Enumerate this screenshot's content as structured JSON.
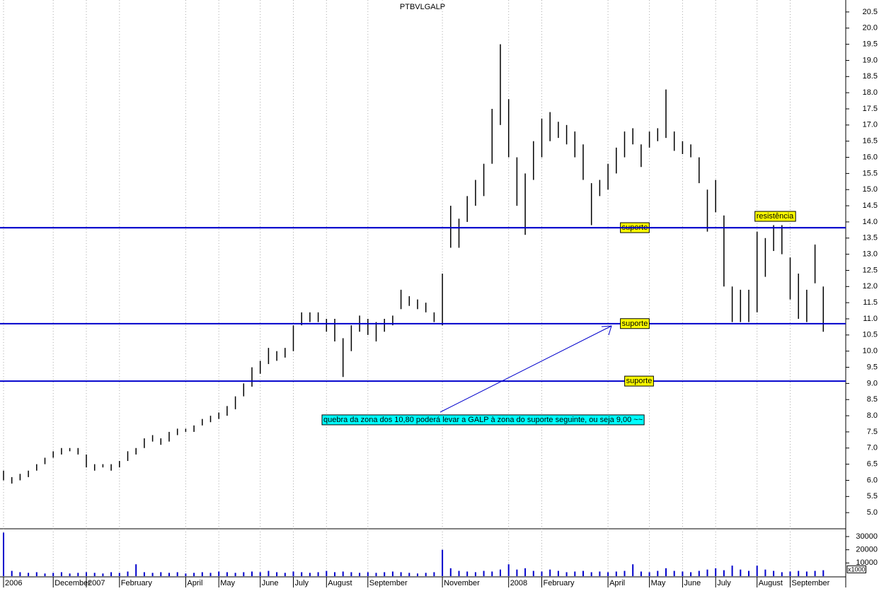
{
  "chart_data": {
    "type": "ohlc",
    "title": "PTBVLGALP",
    "color": "#000000",
    "volume_color": "#0000cc",
    "level_color": "#0000cc",
    "categories": [
      "2006",
      null,
      null,
      null,
      null,
      null,
      "December",
      null,
      null,
      null,
      "2007",
      null,
      null,
      null,
      "February",
      null,
      null,
      null,
      null,
      null,
      null,
      null,
      "April",
      null,
      null,
      null,
      "May",
      null,
      null,
      null,
      null,
      "June",
      null,
      null,
      null,
      "July",
      null,
      null,
      null,
      "August",
      null,
      null,
      null,
      null,
      "September",
      null,
      null,
      null,
      null,
      null,
      null,
      null,
      null,
      "November",
      null,
      null,
      null,
      null,
      null,
      null,
      null,
      "2008",
      null,
      null,
      null,
      "February",
      null,
      null,
      null,
      null,
      null,
      null,
      null,
      "April",
      null,
      null,
      null,
      null,
      "May",
      null,
      null,
      null,
      "June",
      null,
      null,
      null,
      "July",
      null,
      null,
      null,
      null,
      "August",
      null,
      null,
      null,
      "September",
      null,
      null,
      null,
      null
    ],
    "high": [
      6.3,
      6.1,
      6.2,
      6.3,
      6.5,
      6.7,
      6.9,
      7.0,
      7.0,
      7.0,
      6.8,
      6.5,
      6.5,
      6.5,
      6.6,
      6.9,
      7.0,
      7.3,
      7.4,
      7.3,
      7.5,
      7.6,
      7.6,
      7.7,
      7.9,
      8.0,
      8.1,
      8.3,
      8.6,
      9.0,
      9.5,
      9.7,
      10.1,
      10.0,
      10.1,
      10.8,
      11.2,
      11.2,
      11.2,
      11.0,
      11.0,
      10.4,
      10.8,
      11.1,
      11.0,
      10.9,
      11.0,
      11.1,
      11.9,
      11.7,
      11.6,
      11.5,
      11.2,
      12.4,
      14.5,
      14.1,
      14.8,
      15.3,
      15.8,
      17.5,
      19.5,
      17.8,
      16.0,
      15.5,
      16.5,
      17.2,
      17.4,
      17.1,
      17.0,
      16.8,
      16.4,
      15.2,
      15.3,
      15.8,
      16.3,
      16.8,
      16.9,
      16.4,
      16.8,
      16.9,
      18.1,
      16.8,
      16.5,
      16.4,
      16.0,
      15.0,
      15.3,
      14.2,
      12.0,
      11.9,
      11.9,
      13.7,
      13.5,
      13.9,
      13.9,
      12.9,
      12.4,
      11.9,
      13.3,
      12.0
    ],
    "low": [
      6.0,
      5.9,
      6.0,
      6.1,
      6.3,
      6.5,
      6.7,
      6.8,
      6.9,
      6.8,
      6.4,
      6.3,
      6.4,
      6.3,
      6.4,
      6.6,
      6.8,
      7.0,
      7.2,
      7.1,
      7.2,
      7.4,
      7.5,
      7.5,
      7.7,
      7.8,
      7.9,
      8.0,
      8.2,
      8.6,
      8.9,
      9.3,
      9.6,
      9.7,
      9.8,
      10.0,
      10.8,
      10.9,
      10.9,
      10.6,
      10.3,
      9.2,
      10.0,
      10.6,
      10.5,
      10.3,
      10.6,
      10.8,
      11.3,
      11.4,
      11.3,
      11.2,
      10.9,
      10.8,
      13.2,
      13.2,
      14.0,
      14.5,
      14.8,
      15.8,
      17.0,
      16.0,
      14.5,
      13.6,
      15.3,
      16.0,
      16.5,
      16.6,
      16.4,
      16.0,
      15.3,
      13.9,
      14.8,
      15.0,
      15.5,
      16.0,
      16.4,
      15.7,
      16.3,
      16.5,
      16.6,
      16.2,
      16.1,
      16.0,
      15.2,
      13.7,
      14.3,
      12.0,
      10.9,
      10.9,
      10.9,
      11.2,
      12.3,
      13.1,
      13.0,
      11.6,
      11.0,
      10.9,
      12.1,
      10.6
    ],
    "volume": [
      33000,
      4000,
      3000,
      2500,
      3000,
      2000,
      2500,
      3000,
      2000,
      2500,
      3000,
      2500,
      2000,
      3000,
      2500,
      3500,
      9000,
      3000,
      2500,
      3000,
      2500,
      3000,
      2000,
      2500,
      3000,
      2500,
      3500,
      3000,
      2500,
      3000,
      3500,
      3000,
      4000,
      3000,
      2500,
      3500,
      3000,
      2500,
      3000,
      4000,
      3000,
      3500,
      3000,
      2500,
      3000,
      2500,
      3000,
      3500,
      3000,
      2500,
      2000,
      2500,
      3000,
      20000,
      6000,
      4000,
      3500,
      3000,
      4000,
      3500,
      5000,
      9000,
      5000,
      6000,
      4000,
      3500,
      5000,
      4000,
      3000,
      3500,
      4000,
      3000,
      3500,
      3000,
      3500,
      4000,
      9000,
      3500,
      3000,
      4000,
      6000,
      4000,
      3500,
      3000,
      4000,
      5000,
      6000,
      4500,
      8000,
      5000,
      4000,
      8000,
      5000,
      4000,
      3000,
      3500,
      4000,
      3500,
      4000,
      4500
    ],
    "ylim": [
      4.5,
      20.87
    ],
    "yticks": [
      {
        "value": 5,
        "label": "5.0"
      },
      {
        "value": 5.5,
        "label": "5.5"
      },
      {
        "value": 6,
        "label": "6.0"
      },
      {
        "value": 6.5,
        "label": "6.5"
      },
      {
        "value": 7,
        "label": "7.0"
      },
      {
        "value": 7.5,
        "label": "7.5"
      },
      {
        "value": 8,
        "label": "8.0"
      },
      {
        "value": 8.5,
        "label": "8.5"
      },
      {
        "value": 9,
        "label": "9.0"
      },
      {
        "value": 9.5,
        "label": "9.5"
      },
      {
        "value": 10,
        "label": "10.0"
      },
      {
        "value": 10.5,
        "label": "10.5"
      },
      {
        "value": 11,
        "label": "11.0"
      },
      {
        "value": 11.5,
        "label": "11.5"
      },
      {
        "value": 12,
        "label": "12.0"
      },
      {
        "value": 12.5,
        "label": "12.5"
      },
      {
        "value": 13,
        "label": "13.0"
      },
      {
        "value": 13.5,
        "label": "13.5"
      },
      {
        "value": 14,
        "label": "14.0"
      },
      {
        "value": 14.5,
        "label": "14.5"
      },
      {
        "value": 15,
        "label": "15.0"
      },
      {
        "value": 15.5,
        "label": "15.5"
      },
      {
        "value": 16,
        "label": "16.0"
      },
      {
        "value": 16.5,
        "label": "16.5"
      },
      {
        "value": 17,
        "label": "17.0"
      },
      {
        "value": 17.5,
        "label": "17.5"
      },
      {
        "value": 18,
        "label": "18.0"
      },
      {
        "value": 18.5,
        "label": "18.5"
      },
      {
        "value": 19,
        "label": "19.0"
      },
      {
        "value": 19.5,
        "label": "19.5"
      },
      {
        "value": 20,
        "label": "20.0"
      },
      {
        "value": 20.5,
        "label": "20.5"
      }
    ],
    "volume_ylim": [
      0,
      35900
    ],
    "volume_yticks": [
      10000,
      20000,
      30000
    ],
    "volume_unit": "x1000",
    "levels": [
      {
        "value": 13.82,
        "label": "suporte"
      },
      {
        "value": 13.82,
        "label": "resistência"
      },
      {
        "value": 10.85,
        "label": "suporte"
      },
      {
        "value": 9.07,
        "label": "suporte"
      }
    ],
    "annotation": "quebra da zona dos 10,80 poderá levar a GALP à zona do suporte seguinte, ou seja 9,00 ~~"
  }
}
